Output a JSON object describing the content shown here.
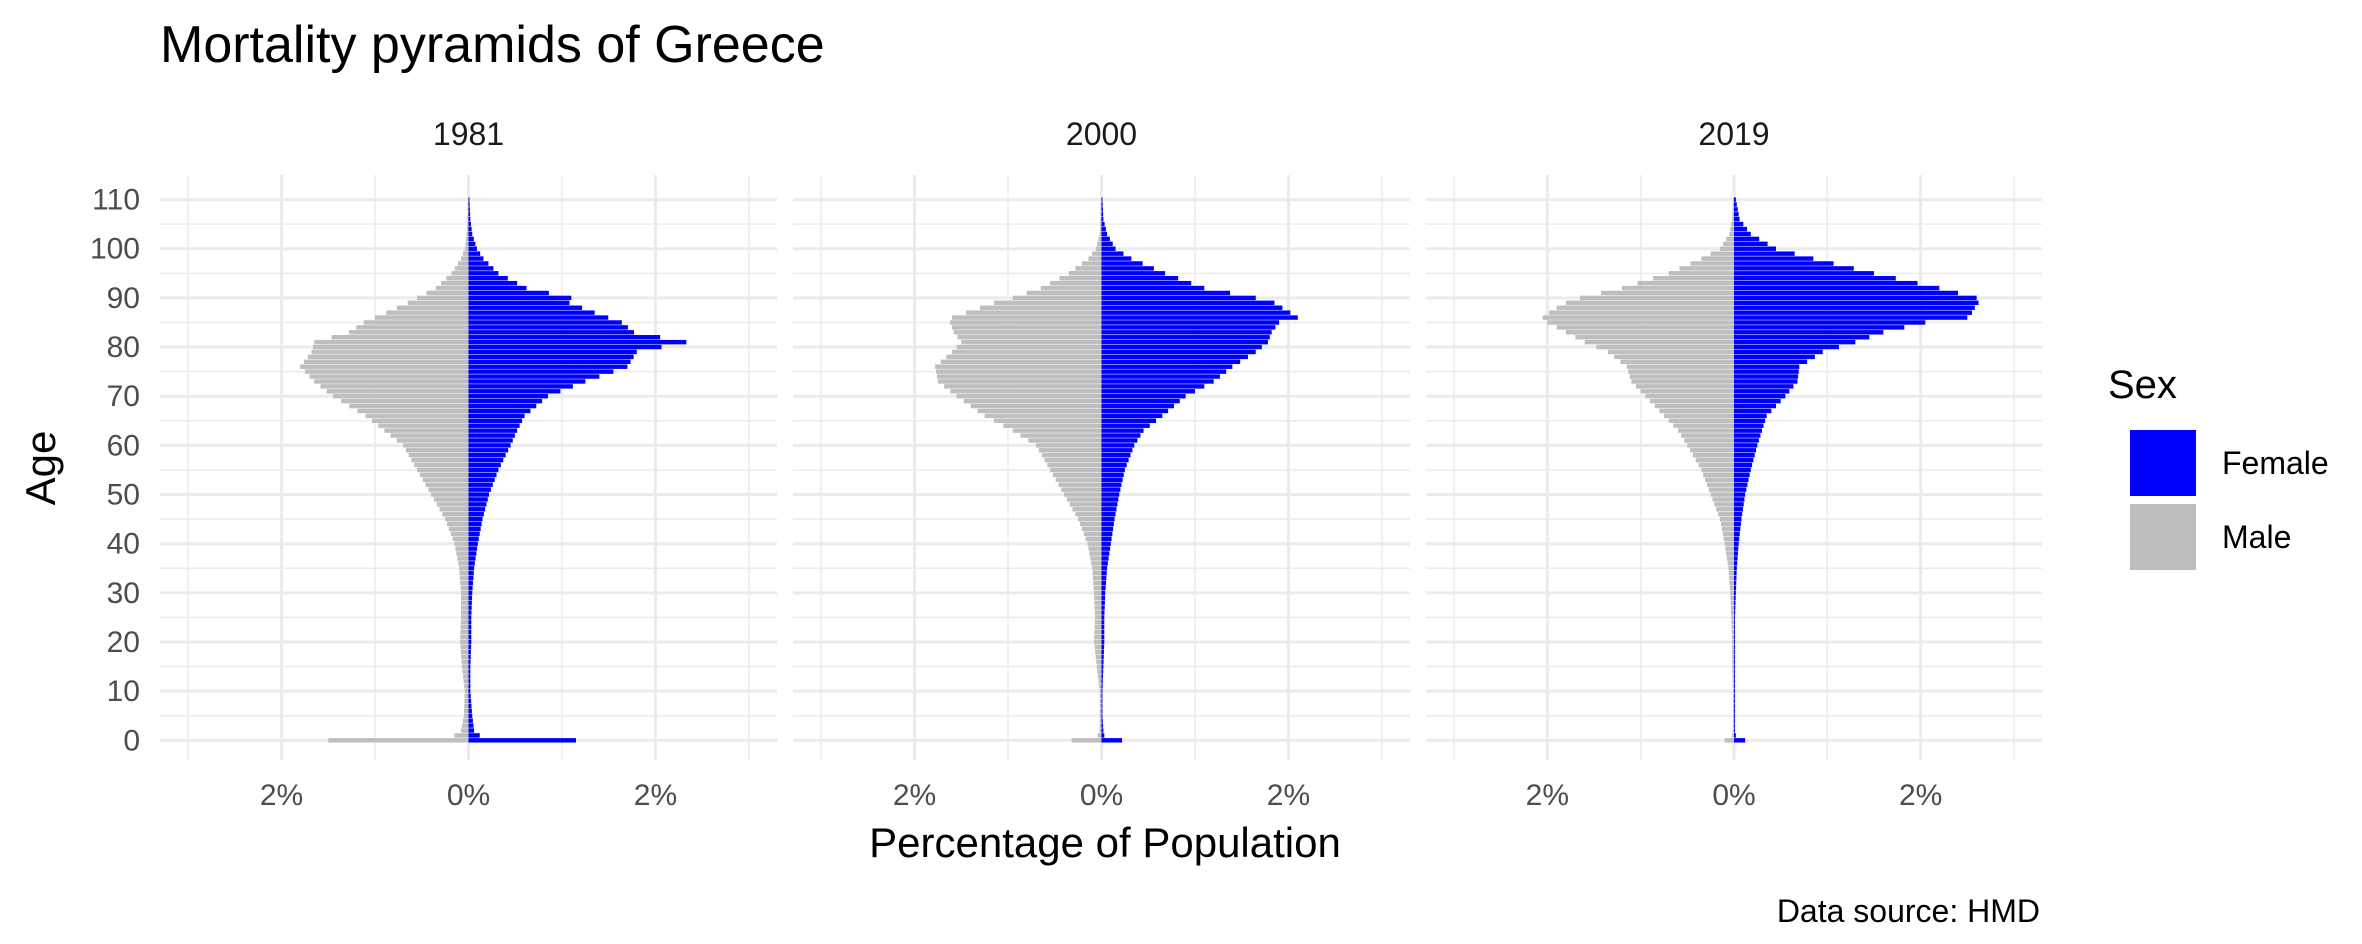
{
  "chart_data": {
    "type": "bar",
    "orientation": "horizontal",
    "title": "Mortality pyramids of Greece",
    "xlabel": "Percentage of Population",
    "ylabel": "Age",
    "caption": "Data source: HMD",
    "legend": {
      "title": "Sex",
      "position": "right",
      "entries": [
        {
          "name": "Female",
          "color": "#0000ff"
        },
        {
          "name": "Male",
          "color": "#bebebe"
        }
      ]
    },
    "x_ticks": [
      -0.02,
      0,
      0.02
    ],
    "x_tick_labels": [
      "2%",
      "0%",
      "2%"
    ],
    "xlim": [
      -0.033,
      0.033
    ],
    "y_ticks": [
      0,
      10,
      20,
      30,
      40,
      50,
      60,
      70,
      80,
      90,
      100,
      110
    ],
    "ylim": [
      -4,
      115
    ],
    "grid": true,
    "colors": {
      "female": "#0000ff",
      "male": "#bebebe",
      "grid": "#ebebeb"
    },
    "facet_labels": [
      "1981",
      "2000",
      "2019"
    ],
    "facets": [
      {
        "label": "1981",
        "age_knots": [
          0,
          1,
          2,
          5,
          10,
          15,
          20,
          25,
          30,
          35,
          40,
          45,
          50,
          55,
          60,
          63,
          66,
          70,
          73,
          76,
          79,
          81,
          83,
          85,
          87,
          89,
          90,
          92,
          95,
          98,
          100,
          103,
          106,
          110
        ],
        "female": [
          0.0115,
          0.0012,
          0.0006,
          0.0004,
          0.0002,
          0.0002,
          0.0003,
          0.0003,
          0.0004,
          0.0006,
          0.001,
          0.0015,
          0.0022,
          0.0032,
          0.0045,
          0.0052,
          0.006,
          0.0085,
          0.0125,
          0.017,
          0.018,
          0.0233,
          0.0177,
          0.0164,
          0.0135,
          0.0108,
          0.011,
          0.0062,
          0.0032,
          0.0016,
          0.0009,
          0.0004,
          0.0002,
          0.0001
        ],
        "male": [
          -0.015,
          -0.0015,
          -0.0008,
          -0.0005,
          -0.0004,
          -0.0007,
          -0.0009,
          -0.0008,
          -0.0008,
          -0.001,
          -0.0015,
          -0.0025,
          -0.004,
          -0.0055,
          -0.007,
          -0.009,
          -0.011,
          -0.0145,
          -0.0165,
          -0.018,
          -0.0168,
          -0.0165,
          -0.0128,
          -0.0112,
          -0.0088,
          -0.0065,
          -0.0055,
          -0.0035,
          -0.0018,
          -0.0008,
          -0.0004,
          -0.0002,
          -0.0001,
          -5e-05
        ]
      },
      {
        "label": "2000",
        "age_knots": [
          0,
          1,
          2,
          5,
          10,
          15,
          20,
          25,
          30,
          35,
          40,
          45,
          50,
          55,
          60,
          63,
          66,
          70,
          73,
          76,
          79,
          81,
          83,
          85,
          86,
          87,
          89,
          90,
          92,
          95,
          98,
          100,
          103,
          106,
          110
        ],
        "female": [
          0.0022,
          0.0003,
          0.0002,
          0.0001,
          0.0001,
          0.0002,
          0.0003,
          0.0003,
          0.0004,
          0.0006,
          0.001,
          0.0014,
          0.0019,
          0.0025,
          0.0035,
          0.0045,
          0.0065,
          0.009,
          0.012,
          0.014,
          0.0165,
          0.0178,
          0.0182,
          0.019,
          0.021,
          0.0202,
          0.0185,
          0.0165,
          0.011,
          0.0068,
          0.0032,
          0.0015,
          0.0006,
          0.0002,
          0.0001
        ],
        "male": [
          -0.0032,
          -0.0004,
          -0.0002,
          -0.0002,
          -0.0002,
          -0.0005,
          -0.0008,
          -0.0007,
          -0.0008,
          -0.001,
          -0.0015,
          -0.0025,
          -0.004,
          -0.0055,
          -0.007,
          -0.0095,
          -0.0125,
          -0.0155,
          -0.0175,
          -0.0178,
          -0.016,
          -0.015,
          -0.0158,
          -0.0162,
          -0.016,
          -0.0145,
          -0.0115,
          -0.0095,
          -0.0065,
          -0.0035,
          -0.0014,
          -0.0006,
          -0.0002,
          -0.0001,
          -5e-05
        ]
      },
      {
        "label": "2019",
        "age_knots": [
          0,
          1,
          2,
          5,
          10,
          15,
          20,
          25,
          30,
          35,
          40,
          45,
          50,
          55,
          60,
          63,
          66,
          70,
          73,
          76,
          79,
          81,
          83,
          85,
          86,
          87,
          88,
          89,
          90,
          92,
          95,
          98,
          100,
          103,
          106,
          110
        ],
        "female": [
          0.0012,
          0.0002,
          0.0001,
          0.0001,
          0.0001,
          0.0001,
          0.0001,
          0.0001,
          0.0002,
          0.0003,
          0.0005,
          0.0008,
          0.0012,
          0.0018,
          0.0025,
          0.003,
          0.0035,
          0.0055,
          0.0068,
          0.007,
          0.0095,
          0.013,
          0.016,
          0.0205,
          0.025,
          0.0255,
          0.0258,
          0.0262,
          0.026,
          0.022,
          0.015,
          0.0085,
          0.0045,
          0.0018,
          0.0006,
          0.0002
        ],
        "male": [
          -0.001,
          -0.0002,
          -0.0001,
          -0.0001,
          -0.0001,
          -0.0002,
          -0.0002,
          -0.0003,
          -0.0004,
          -0.0006,
          -0.001,
          -0.0015,
          -0.0025,
          -0.0035,
          -0.005,
          -0.006,
          -0.0075,
          -0.0095,
          -0.011,
          -0.0115,
          -0.0135,
          -0.016,
          -0.018,
          -0.02,
          -0.0205,
          -0.0198,
          -0.019,
          -0.018,
          -0.0165,
          -0.012,
          -0.007,
          -0.0035,
          -0.0015,
          -0.0005,
          -0.0002,
          -0.0001
        ]
      }
    ]
  }
}
